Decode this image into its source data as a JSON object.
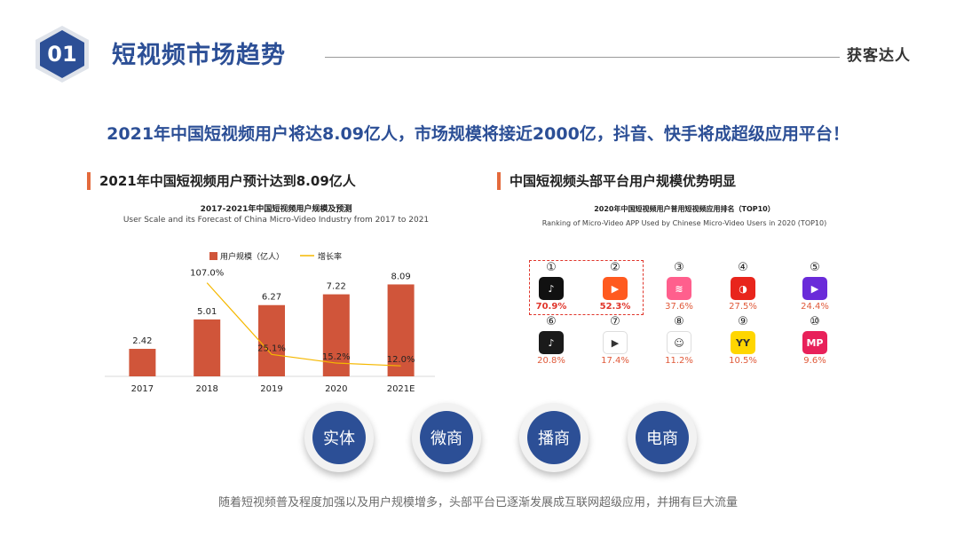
{
  "header": {
    "badge_number": "01",
    "title": "短视频市场趋势",
    "brand": "获客达人"
  },
  "headline": "2021年中国短视频用户将达8.09亿人，市场规模将接近2000亿，抖音、快手将成超级应用平台！",
  "left_section": {
    "title": "2021年中国短视频用户预计达到8.09亿人",
    "chart_title_cn": "2017-2021年中国短视频用户规模及预测",
    "chart_title_en": "User Scale and its Forecast of China Micro-Video Industry from 2017 to 2021"
  },
  "chart_data": {
    "type": "bar",
    "categories": [
      "2017",
      "2018",
      "2019",
      "2020",
      "2021E"
    ],
    "series": [
      {
        "name": "用户规模（亿人）",
        "type": "bar",
        "values": [
          2.42,
          5.01,
          6.27,
          7.22,
          8.09
        ],
        "labels": [
          "2.42",
          "5.01",
          "6.27",
          "7.22",
          "8.09"
        ]
      },
      {
        "name": "增长率",
        "type": "line",
        "values": [
          null,
          107.0,
          25.1,
          15.2,
          12.0
        ],
        "labels": [
          "",
          "107.0%",
          "25.1%",
          "15.2%",
          "12.0%"
        ]
      }
    ],
    "ylim": [
      0,
      10
    ],
    "line_ylim": [
      0,
      130
    ],
    "legend_position": "top",
    "grid": false,
    "colors": {
      "bar": "#d0553a",
      "line": "#f5b800"
    }
  },
  "right_section": {
    "title": "中国短视频头部平台用户规模优势明显",
    "chart_title_cn": "2020年中国短视频用户普用短视频应用排名（TOP10）",
    "chart_title_en": "Ranking of Micro-Video APP Used by Chinese Micro-Video Users in 2020 (TOP10)",
    "apps": [
      {
        "rank": "①",
        "icon": "douyin-icon",
        "pct": "70.9%",
        "color": "#111111",
        "glyph": "♪"
      },
      {
        "rank": "②",
        "icon": "kuaishou-icon",
        "pct": "52.3%",
        "color": "#ff5a1f",
        "glyph": "▶"
      },
      {
        "rank": "③",
        "icon": "haokan-icon",
        "pct": "37.6%",
        "color": "#ff5f8d",
        "glyph": "≋"
      },
      {
        "rank": "④",
        "icon": "xigua-icon",
        "pct": "27.5%",
        "color": "#e8251c",
        "glyph": "◑"
      },
      {
        "rank": "⑤",
        "icon": "bilibili-icon",
        "pct": "24.4%",
        "color": "#6a2bd9",
        "glyph": "▶"
      },
      {
        "rank": "⑥",
        "icon": "douyin-huoshan-icon",
        "pct": "20.8%",
        "color": "#1a1a1a",
        "glyph": "♪"
      },
      {
        "rank": "⑦",
        "icon": "weishi-icon",
        "pct": "17.4%",
        "color": "#ffffff",
        "glyph": "▶"
      },
      {
        "rank": "⑧",
        "icon": "quanmin-icon",
        "pct": "11.2%",
        "color": "#ffffff",
        "glyph": "☺"
      },
      {
        "rank": "⑨",
        "icon": "yy-icon",
        "pct": "10.5%",
        "color": "#ffd600",
        "glyph": "YY"
      },
      {
        "rank": "⑩",
        "icon": "meipai-icon",
        "pct": "9.6%",
        "color": "#e8215a",
        "glyph": "MP"
      }
    ]
  },
  "circles": [
    "实体",
    "微商",
    "播商",
    "电商"
  ],
  "footer": "随着短视频普及程度加强以及用户规模增多，头部平台已逐渐发展成互联网超级应用，并拥有巨大流量"
}
